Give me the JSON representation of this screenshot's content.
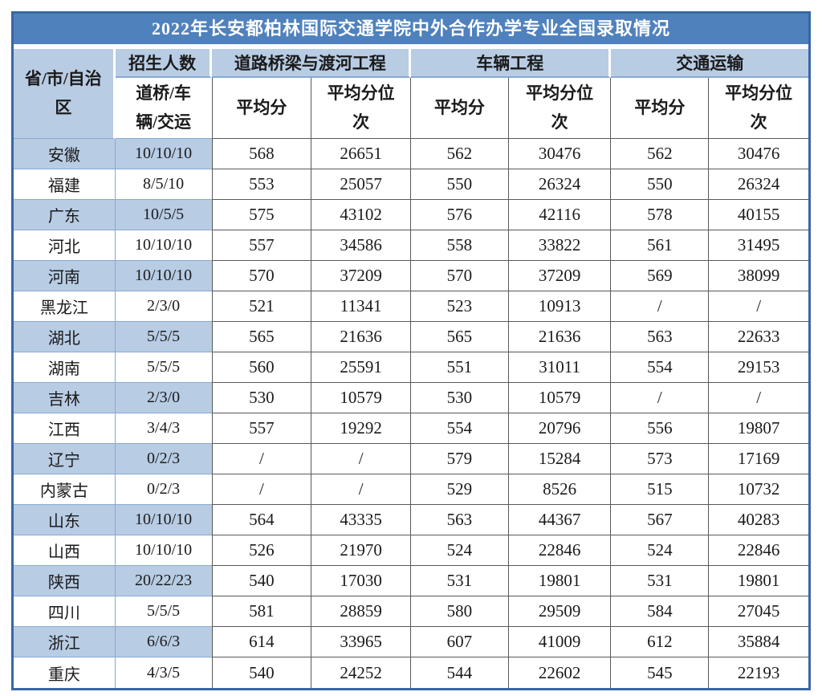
{
  "title": "2022年长安都柏林国际交通学院中外合作办学专业全国录取情况",
  "colors": {
    "frame_border": "#3a67a4",
    "title_bar_bg": "#4f81bd",
    "title_text": "#ffffff",
    "header_blue": "#b8cce4",
    "row_shade_blue": "#b8cce4",
    "blue_border": "#88a9d2",
    "dark_border": "#595959",
    "text": "#1a1a1a"
  },
  "table": {
    "province_header": "省/市/自治区",
    "enrollment_header": "招生人数",
    "enrollment_subheader": "道桥/车辆/交运",
    "avg_label": "平均分",
    "rank_label": "平均分位次",
    "groups": [
      {
        "label": "道路桥梁与渡河工程"
      },
      {
        "label": "车辆工程"
      },
      {
        "label": "交通运输"
      }
    ],
    "rows": [
      {
        "province": "安徽",
        "enrollment": "10/10/10",
        "values": [
          "568",
          "26651",
          "562",
          "30476",
          "562",
          "30476"
        ]
      },
      {
        "province": "福建",
        "enrollment": "8/5/10",
        "values": [
          "553",
          "25057",
          "550",
          "26324",
          "550",
          "26324"
        ]
      },
      {
        "province": "广东",
        "enrollment": "10/5/5",
        "values": [
          "575",
          "43102",
          "576",
          "42116",
          "578",
          "40155"
        ]
      },
      {
        "province": "河北",
        "enrollment": "10/10/10",
        "values": [
          "557",
          "34586",
          "558",
          "33822",
          "561",
          "31495"
        ]
      },
      {
        "province": "河南",
        "enrollment": "10/10/10",
        "values": [
          "570",
          "37209",
          "570",
          "37209",
          "569",
          "38099"
        ]
      },
      {
        "province": "黑龙江",
        "enrollment": "2/3/0",
        "values": [
          "521",
          "11341",
          "523",
          "10913",
          "/",
          "/"
        ]
      },
      {
        "province": "湖北",
        "enrollment": "5/5/5",
        "values": [
          "565",
          "21636",
          "565",
          "21636",
          "563",
          "22633"
        ]
      },
      {
        "province": "湖南",
        "enrollment": "5/5/5",
        "values": [
          "560",
          "25591",
          "551",
          "31011",
          "554",
          "29153"
        ]
      },
      {
        "province": "吉林",
        "enrollment": "2/3/0",
        "values": [
          "530",
          "10579",
          "530",
          "10579",
          "/",
          "/"
        ]
      },
      {
        "province": "江西",
        "enrollment": "3/4/3",
        "values": [
          "557",
          "19292",
          "554",
          "20796",
          "556",
          "19807"
        ]
      },
      {
        "province": "辽宁",
        "enrollment": "0/2/3",
        "values": [
          "/",
          "/",
          "579",
          "15284",
          "573",
          "17169"
        ]
      },
      {
        "province": "内蒙古",
        "enrollment": "0/2/3",
        "values": [
          "/",
          "/",
          "529",
          "8526",
          "515",
          "10732"
        ]
      },
      {
        "province": "山东",
        "enrollment": "10/10/10",
        "values": [
          "564",
          "43335",
          "563",
          "44367",
          "567",
          "40283"
        ]
      },
      {
        "province": "山西",
        "enrollment": "10/10/10",
        "values": [
          "526",
          "21970",
          "524",
          "22846",
          "524",
          "22846"
        ]
      },
      {
        "province": "陕西",
        "enrollment": "20/22/23",
        "values": [
          "540",
          "17030",
          "531",
          "19801",
          "531",
          "19801"
        ]
      },
      {
        "province": "四川",
        "enrollment": "5/5/5",
        "values": [
          "581",
          "28859",
          "580",
          "29509",
          "584",
          "27045"
        ]
      },
      {
        "province": "浙江",
        "enrollment": "6/6/3",
        "values": [
          "614",
          "33965",
          "607",
          "41009",
          "612",
          "35884"
        ]
      },
      {
        "province": "重庆",
        "enrollment": "4/3/5",
        "values": [
          "540",
          "24252",
          "544",
          "22602",
          "545",
          "22193"
        ]
      }
    ]
  }
}
